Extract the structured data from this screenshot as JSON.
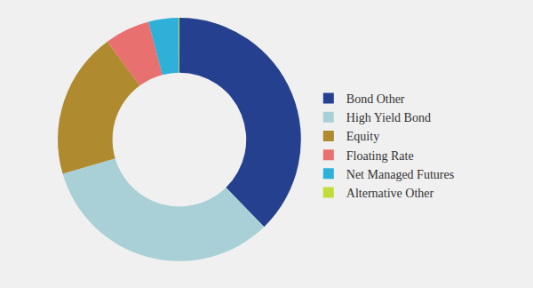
{
  "chart_data": {
    "type": "donut",
    "categories": [
      "Bond Other",
      "High Yield Bond",
      "Equity",
      "Floating Rate",
      "Net Managed Futures",
      "Alternative Other"
    ],
    "values": [
      37.8,
      32.8,
      19.5,
      6.0,
      4.0,
      0.1
    ],
    "colors": [
      "#25408f",
      "#a8d0d6",
      "#b08a2e",
      "#e8706e",
      "#2eb0d8",
      "#c2dc3a"
    ],
    "legend": "right"
  }
}
